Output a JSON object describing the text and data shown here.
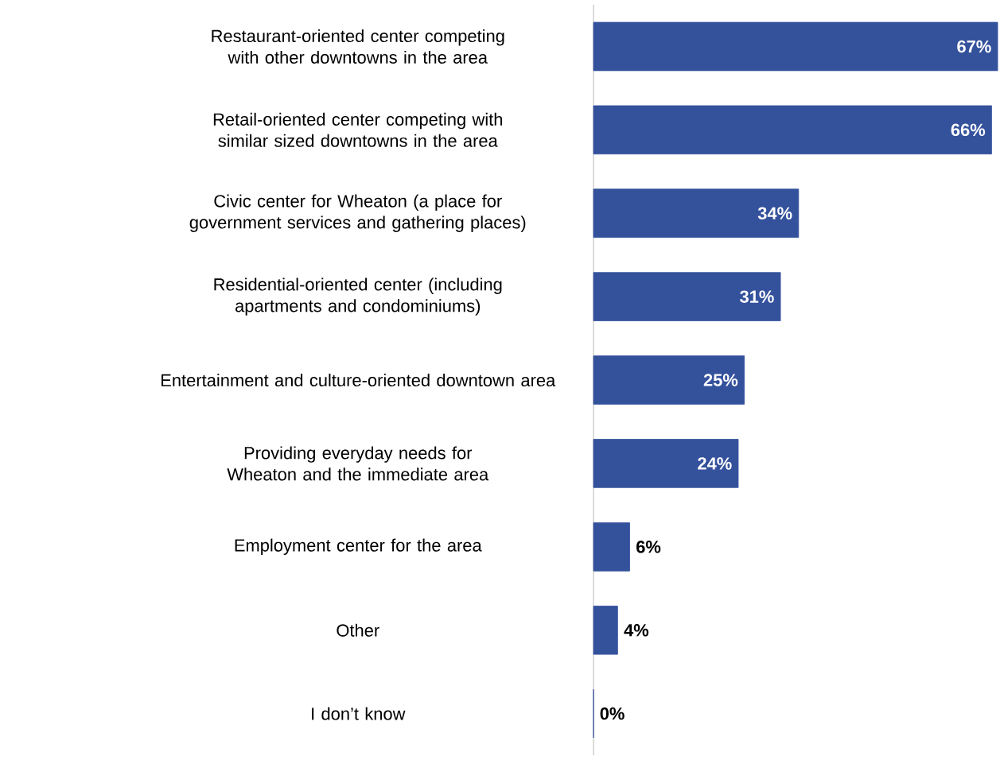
{
  "chart_data": {
    "type": "bar",
    "orientation": "horizontal",
    "categories": [
      "Restaurant-oriented center competing with other downtowns in the area",
      "Retail-oriented center competing with similar sized downtowns in the area",
      "Civic center for Wheaton (a place for government services and gathering places)",
      "Residential-oriented center (including apartments and condominiums)",
      "Entertainment and culture-oriented downtown area",
      "Providing everyday needs for Wheaton and the immediate area",
      "Employment center for the area",
      "Other",
      "I don’t know"
    ],
    "values": [
      67,
      66,
      34,
      31,
      25,
      24,
      6,
      4,
      0
    ],
    "value_labels": [
      "67%",
      "66%",
      "34%",
      "31%",
      "25%",
      "24%",
      "6%",
      "4%",
      "0%"
    ],
    "color": "#34519c"
  }
}
